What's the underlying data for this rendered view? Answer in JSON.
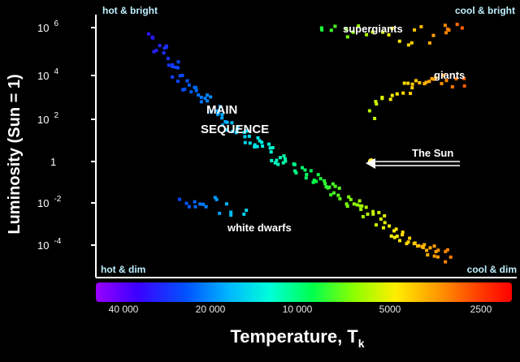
{
  "chart_data": {
    "type": "scatter",
    "title": "",
    "xlabel": "Temperature, T",
    "xlabel_subscript": "k",
    "ylabel": "Luminosity (Sun = 1)",
    "y_scale": "log",
    "ylim_log10": [
      -4.5,
      6.5
    ],
    "y_ticks": [
      {
        "label": "10",
        "exp": "6",
        "log": 6
      },
      {
        "label": "10",
        "exp": "4",
        "log": 4
      },
      {
        "label": "10",
        "exp": "2",
        "log": 2
      },
      {
        "label": "1",
        "exp": "",
        "log": 0
      },
      {
        "label": "10",
        "exp": "-2",
        "log": -2
      },
      {
        "label": "10",
        "exp": "-4",
        "log": -4
      }
    ],
    "x_ticks": [
      "40 000",
      "20 000",
      "10 000",
      "5000",
      "2500"
    ],
    "x_direction": "decreasing temperature to the right",
    "corners": {
      "top_left": "hot & bright",
      "top_right": "cool & bright",
      "bottom_left": "hot & dim",
      "bottom_right": "cool & dim"
    },
    "annotations": {
      "supergiants": "supergiants",
      "giants": "giants",
      "main_sequence_line1": "MAIN",
      "main_sequence_line2": "SEQUENCE",
      "white_dwarfs": "white dwarfs",
      "sun": "The Sun"
    },
    "series": [
      {
        "name": "main sequence",
        "x_log_temp": [
          4.5,
          4.48,
          4.46,
          4.45,
          4.43,
          4.42,
          4.4,
          4.38,
          4.36,
          4.35,
          4.33,
          4.31,
          4.29,
          4.27,
          4.25,
          4.23,
          4.21,
          4.19,
          4.17,
          4.15,
          4.13,
          4.11,
          4.09,
          4.07,
          4.05,
          4.03,
          4.01,
          3.99,
          3.97,
          3.95,
          3.93,
          3.91,
          3.89,
          3.87,
          3.85,
          3.83,
          3.81,
          3.79,
          3.77,
          3.75,
          3.73,
          3.71,
          3.69,
          3.67,
          3.65,
          3.63,
          3.61,
          3.59,
          3.57,
          3.55,
          3.53,
          3.51
        ],
        "y_log_lum": [
          5.6,
          5.2,
          5.0,
          4.7,
          4.4,
          4.2,
          3.9,
          3.6,
          3.4,
          3.2,
          3.0,
          2.8,
          2.5,
          2.3,
          2.0,
          1.8,
          1.6,
          1.3,
          1.1,
          0.9,
          0.7,
          0.6,
          0.4,
          0.2,
          0.1,
          0.0,
          -0.2,
          -0.3,
          -0.5,
          -0.7,
          -0.9,
          -1.1,
          -1.3,
          -1.5,
          -1.7,
          -1.9,
          -2.1,
          -2.3,
          -2.5,
          -2.7,
          -2.9,
          -3.1,
          -3.3,
          -3.5,
          -3.6,
          -3.8,
          -4.0,
          -4.1,
          -4.2,
          -4.3,
          -4.4,
          -4.5
        ]
      },
      {
        "name": "supergiants",
        "x_log_temp": [
          3.92,
          3.88,
          3.84,
          3.8,
          3.76,
          3.72,
          3.68,
          3.64,
          3.6,
          3.56,
          3.52,
          3.49,
          3.46
        ],
        "y_log_lum": [
          5.8,
          5.9,
          5.7,
          5.8,
          5.6,
          5.9,
          5.7,
          5.5,
          5.8,
          5.6,
          5.9,
          5.8,
          6.0
        ]
      },
      {
        "name": "giants",
        "x_log_temp": [
          3.75,
          3.73,
          3.71,
          3.69,
          3.67,
          3.65,
          3.63,
          3.61,
          3.59,
          3.57,
          3.55,
          3.53,
          3.51,
          3.49,
          3.47
        ],
        "y_log_lum": [
          2.3,
          2.6,
          2.9,
          3.1,
          3.3,
          3.5,
          3.4,
          3.6,
          3.8,
          3.6,
          3.7,
          3.9,
          3.8,
          3.6,
          3.7
        ]
      },
      {
        "name": "white dwarfs",
        "x_log_temp": [
          4.4,
          4.37,
          4.34,
          4.31,
          4.28,
          4.25,
          4.22,
          4.19
        ],
        "y_log_lum": [
          -1.9,
          -2.0,
          -2.0,
          -2.1,
          -2.0,
          -2.2,
          -2.3,
          -2.6
        ]
      }
    ],
    "sun_point": {
      "log_temp": 3.76,
      "log_lum": 0.0
    },
    "colorbar": "spectrum from violet (hot) to red (cool)"
  },
  "colors": {
    "background": "#000000",
    "text": "#ffffff",
    "corner_text": "#bfefff",
    "axis": "#ffffff"
  }
}
